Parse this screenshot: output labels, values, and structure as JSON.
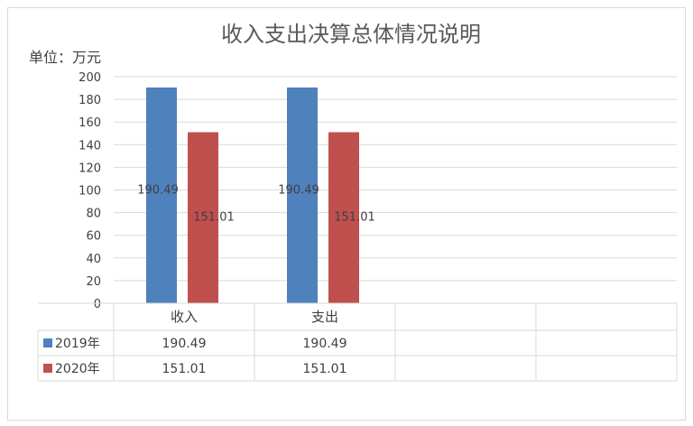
{
  "chart_data": {
    "type": "bar",
    "title": "收入支出决算总体情况说明",
    "unit_label": "单位：万元",
    "categories": [
      "收入",
      "支出",
      "",
      ""
    ],
    "ylim": [
      0,
      200
    ],
    "yticks": [
      "0",
      "20",
      "40",
      "60",
      "80",
      "100",
      "120",
      "140",
      "160",
      "180",
      "200"
    ],
    "series": [
      {
        "name": "2019年",
        "color": "#4f81bd",
        "values": [
          190.49,
          190.49,
          null,
          null
        ],
        "labels": [
          "190.49",
          "190.49",
          "",
          ""
        ]
      },
      {
        "name": "2020年",
        "color": "#c0504d",
        "values": [
          151.01,
          151.01,
          null,
          null
        ],
        "labels": [
          "151.01",
          "151.01",
          "",
          ""
        ]
      }
    ],
    "grid": true,
    "data_table": true
  }
}
